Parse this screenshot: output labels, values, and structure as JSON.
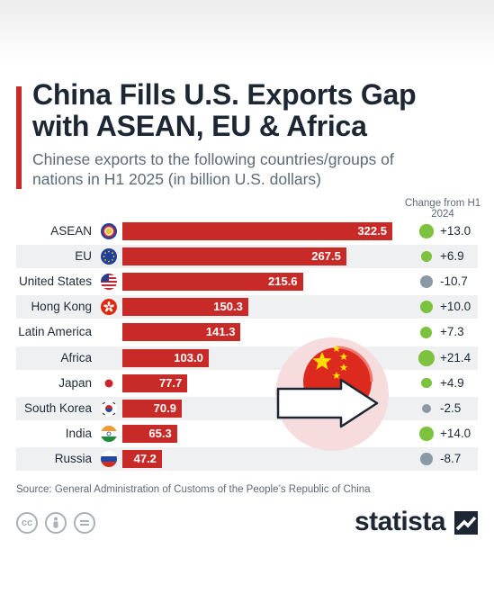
{
  "header": {
    "title": "China Fills U.S. Exports Gap with ASEAN, EU & Africa",
    "subtitle": "Chinese exports to the following countries/groups of nations in H1 2025 (in billion U.S. dollars)",
    "change_heading": "Change from H1 2024"
  },
  "chart_data": {
    "type": "bar",
    "orientation": "horizontal",
    "title": "China Fills U.S. Exports Gap with ASEAN, EU & Africa",
    "subtitle": "Chinese exports to the following countries/groups of nations in H1 2025 (in billion U.S. dollars)",
    "categories": [
      "ASEAN",
      "EU",
      "United States",
      "Hong Kong",
      "Latin America",
      "Africa",
      "Japan",
      "South Korea",
      "India",
      "Russia"
    ],
    "values": [
      322.5,
      267.5,
      215.6,
      150.3,
      141.3,
      103.0,
      77.7,
      70.9,
      65.3,
      47.2
    ],
    "value_labels": [
      "322.5",
      "267.5",
      "215.6",
      "150.3",
      "141.3",
      "103.0",
      "77.7",
      "70.9",
      "65.3",
      "47.2"
    ],
    "change_values": [
      13.0,
      6.9,
      -10.7,
      10.0,
      7.3,
      21.4,
      4.9,
      -2.5,
      14.0,
      -8.7
    ],
    "change_labels": [
      "+13.0",
      "+6.9",
      "-10.7",
      "+10.0",
      "+7.3",
      "+21.4",
      "+4.9",
      "-2.5",
      "+14.0",
      "-8.7"
    ],
    "change_heading": "Change from H1 2024",
    "xlim": [
      0,
      322.5
    ],
    "grid": false,
    "colors": {
      "bar": "#c82a27",
      "positive": "#7cc23f",
      "negative": "#8a99a6"
    }
  },
  "flags": [
    "asean-flag",
    "eu-flag",
    "us-flag",
    "hong-kong-flag",
    "none",
    "none",
    "japan-flag",
    "south-korea-flag",
    "india-flag",
    "russia-flag"
  ],
  "footer": {
    "source": "Source: General Administration of Customs of the People’s Republic of China",
    "logo": "statista",
    "license_icons": [
      "cc-icon",
      "attribution-icon",
      "no-derivatives-icon"
    ]
  }
}
